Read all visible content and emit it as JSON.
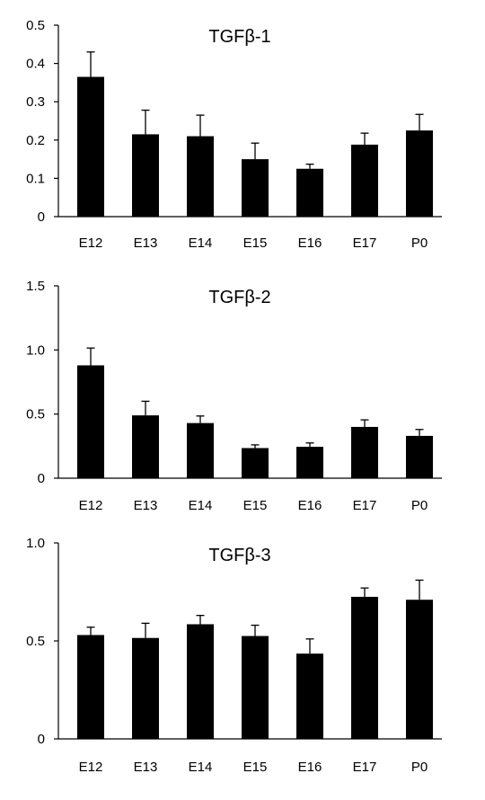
{
  "chart_data": [
    {
      "type": "bar",
      "title": "TGFβ-1",
      "categories": [
        "E12",
        "E13",
        "E14",
        "E15",
        "E16",
        "E17",
        "P0"
      ],
      "values": [
        0.365,
        0.215,
        0.21,
        0.15,
        0.125,
        0.188,
        0.225
      ],
      "errors": [
        0.065,
        0.063,
        0.055,
        0.042,
        0.012,
        0.03,
        0.042
      ],
      "ylim": [
        0,
        0.5
      ],
      "yticks": [
        0,
        0.1,
        0.2,
        0.3,
        0.4,
        0.5
      ],
      "yticklabels": [
        "0",
        "0.1",
        "0.2",
        "0.3",
        "0.4",
        "0.5"
      ],
      "xlabel": "",
      "ylabel": "",
      "bar_color": "#000000"
    },
    {
      "type": "bar",
      "title": "TGFβ-2",
      "categories": [
        "E12",
        "E13",
        "E14",
        "E15",
        "E16",
        "E17",
        "P0"
      ],
      "values": [
        0.88,
        0.49,
        0.43,
        0.235,
        0.245,
        0.4,
        0.33
      ],
      "errors": [
        0.135,
        0.11,
        0.055,
        0.025,
        0.03,
        0.055,
        0.05
      ],
      "ylim": [
        0,
        1.5
      ],
      "yticks": [
        0,
        0.5,
        1.0,
        1.5
      ],
      "yticklabels": [
        "0",
        "0.5",
        "1.0",
        "1.5"
      ],
      "xlabel": "",
      "ylabel": "",
      "bar_color": "#000000"
    },
    {
      "type": "bar",
      "title": "TGFβ-3",
      "categories": [
        "E12",
        "E13",
        "E14",
        "E15",
        "E16",
        "E17",
        "P0"
      ],
      "values": [
        0.53,
        0.515,
        0.585,
        0.525,
        0.435,
        0.725,
        0.71
      ],
      "errors": [
        0.04,
        0.075,
        0.045,
        0.055,
        0.075,
        0.045,
        0.1
      ],
      "ylim": [
        0,
        1.0
      ],
      "yticks": [
        0,
        0.5,
        1.0
      ],
      "yticklabels": [
        "0",
        "0.5",
        "1.0"
      ],
      "xlabel": "",
      "ylabel": "",
      "bar_color": "#000000"
    }
  ]
}
